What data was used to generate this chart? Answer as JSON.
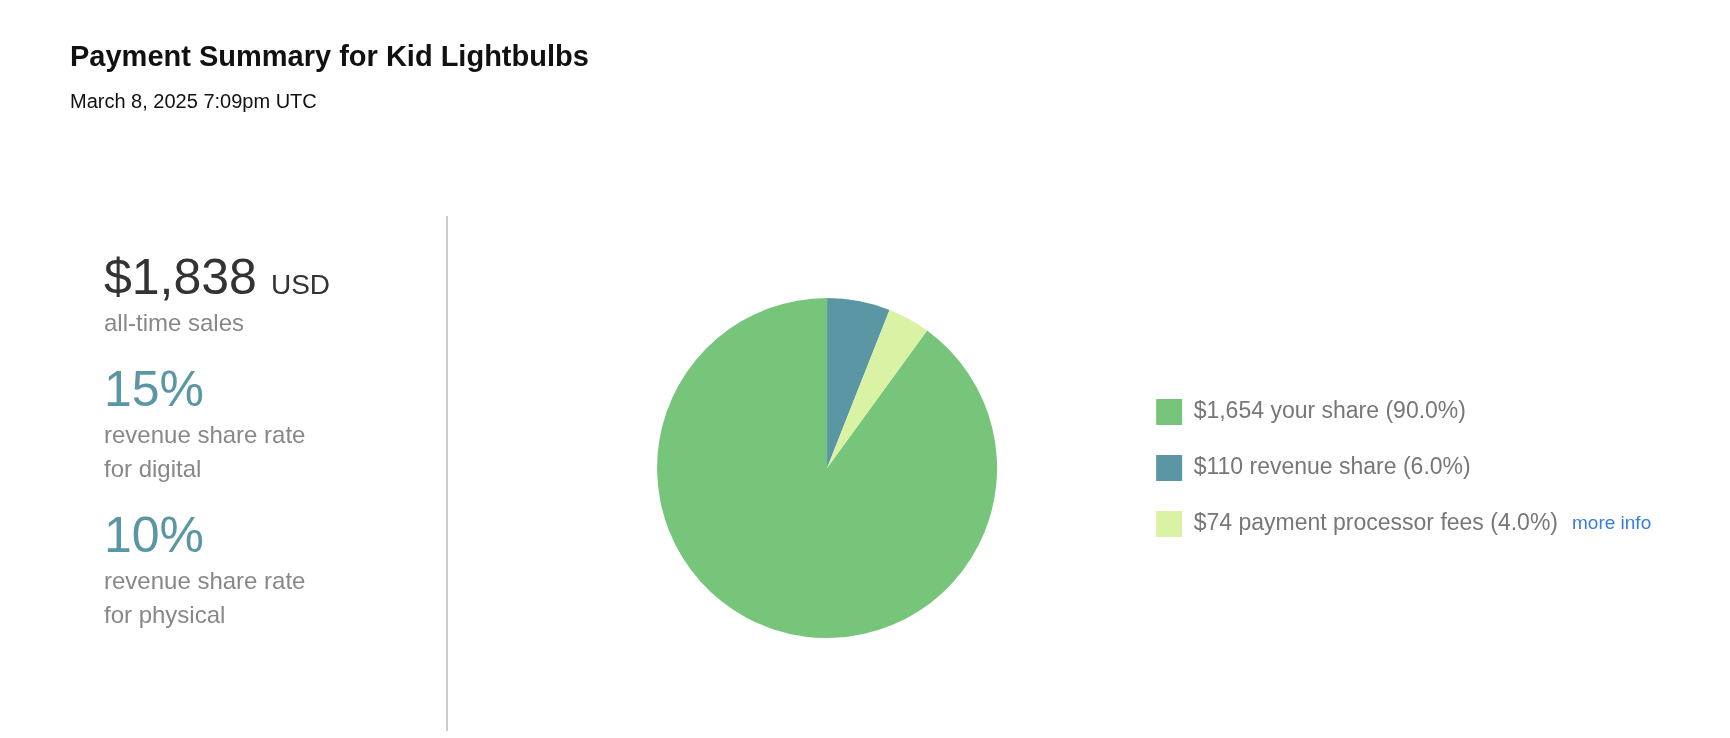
{
  "chart_data": [
    {
      "type": "other",
      "title": "Payment Summary for Kid Lightbulbs",
      "subtitle": "March 8, 2025 7:09pm UTC",
      "annotations": [
        "$1,838",
        "USD",
        "all-time sales",
        "15%",
        "revenue share rate\nfor digital",
        "10%",
        "revenue share rate\nfor physical"
      ]
    },
    {
      "type": "pie",
      "categories": [
        "$1,654 your share (90.0%)",
        "$110 revenue share (6.0%)",
        "$74 payment processor fees (4.0%)"
      ],
      "values": [
        1654,
        110,
        74
      ],
      "colors": [
        "#77c57a",
        "#5b96a5",
        "#d9f2a3"
      ],
      "legend": "right",
      "annotations": [
        "more info"
      ]
    }
  ]
}
